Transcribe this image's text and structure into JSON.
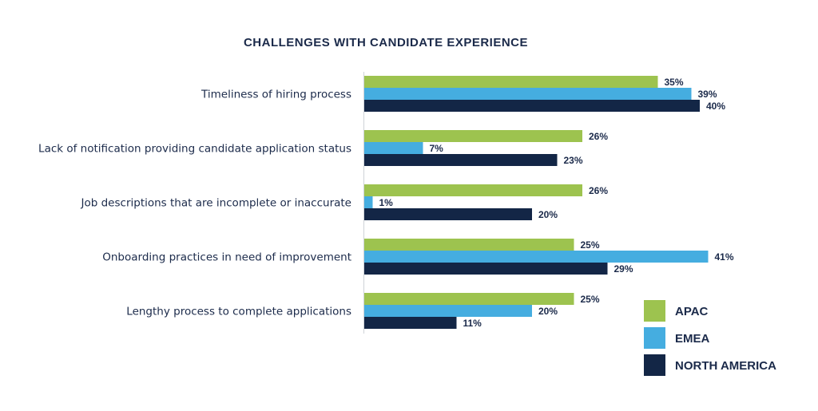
{
  "chart_data": {
    "type": "bar",
    "orientation": "horizontal",
    "title": "CHALLENGES WITH CANDIDATE EXPERIENCE",
    "xlabel": "",
    "ylabel": "",
    "categories": [
      "Timeliness of hiring process",
      "Lack of notification providing candidate application status",
      "Job descriptions that are incomplete or inaccurate",
      "Onboarding practices in need of improvement",
      "Lengthy process to complete applications"
    ],
    "series": [
      {
        "name": "APAC",
        "color": "#9dc34f",
        "values": [
          35,
          26,
          26,
          25,
          25
        ],
        "labels": [
          "35%",
          "26%",
          "26%",
          "25%",
          "25%"
        ]
      },
      {
        "name": "EMEA",
        "color": "#45ade0",
        "values": [
          39,
          7,
          1,
          41,
          20
        ],
        "labels": [
          "39%",
          "7%",
          "1%",
          "41%",
          "20%"
        ]
      },
      {
        "name": "NORTH AMERICA",
        "color": "#132646",
        "values": [
          40,
          23,
          20,
          29,
          11
        ],
        "labels": [
          "40%",
          "23%",
          "20%",
          "29%",
          "11%"
        ]
      }
    ],
    "value_unit": "%",
    "grid": false,
    "legend_position": "bottom-right"
  }
}
